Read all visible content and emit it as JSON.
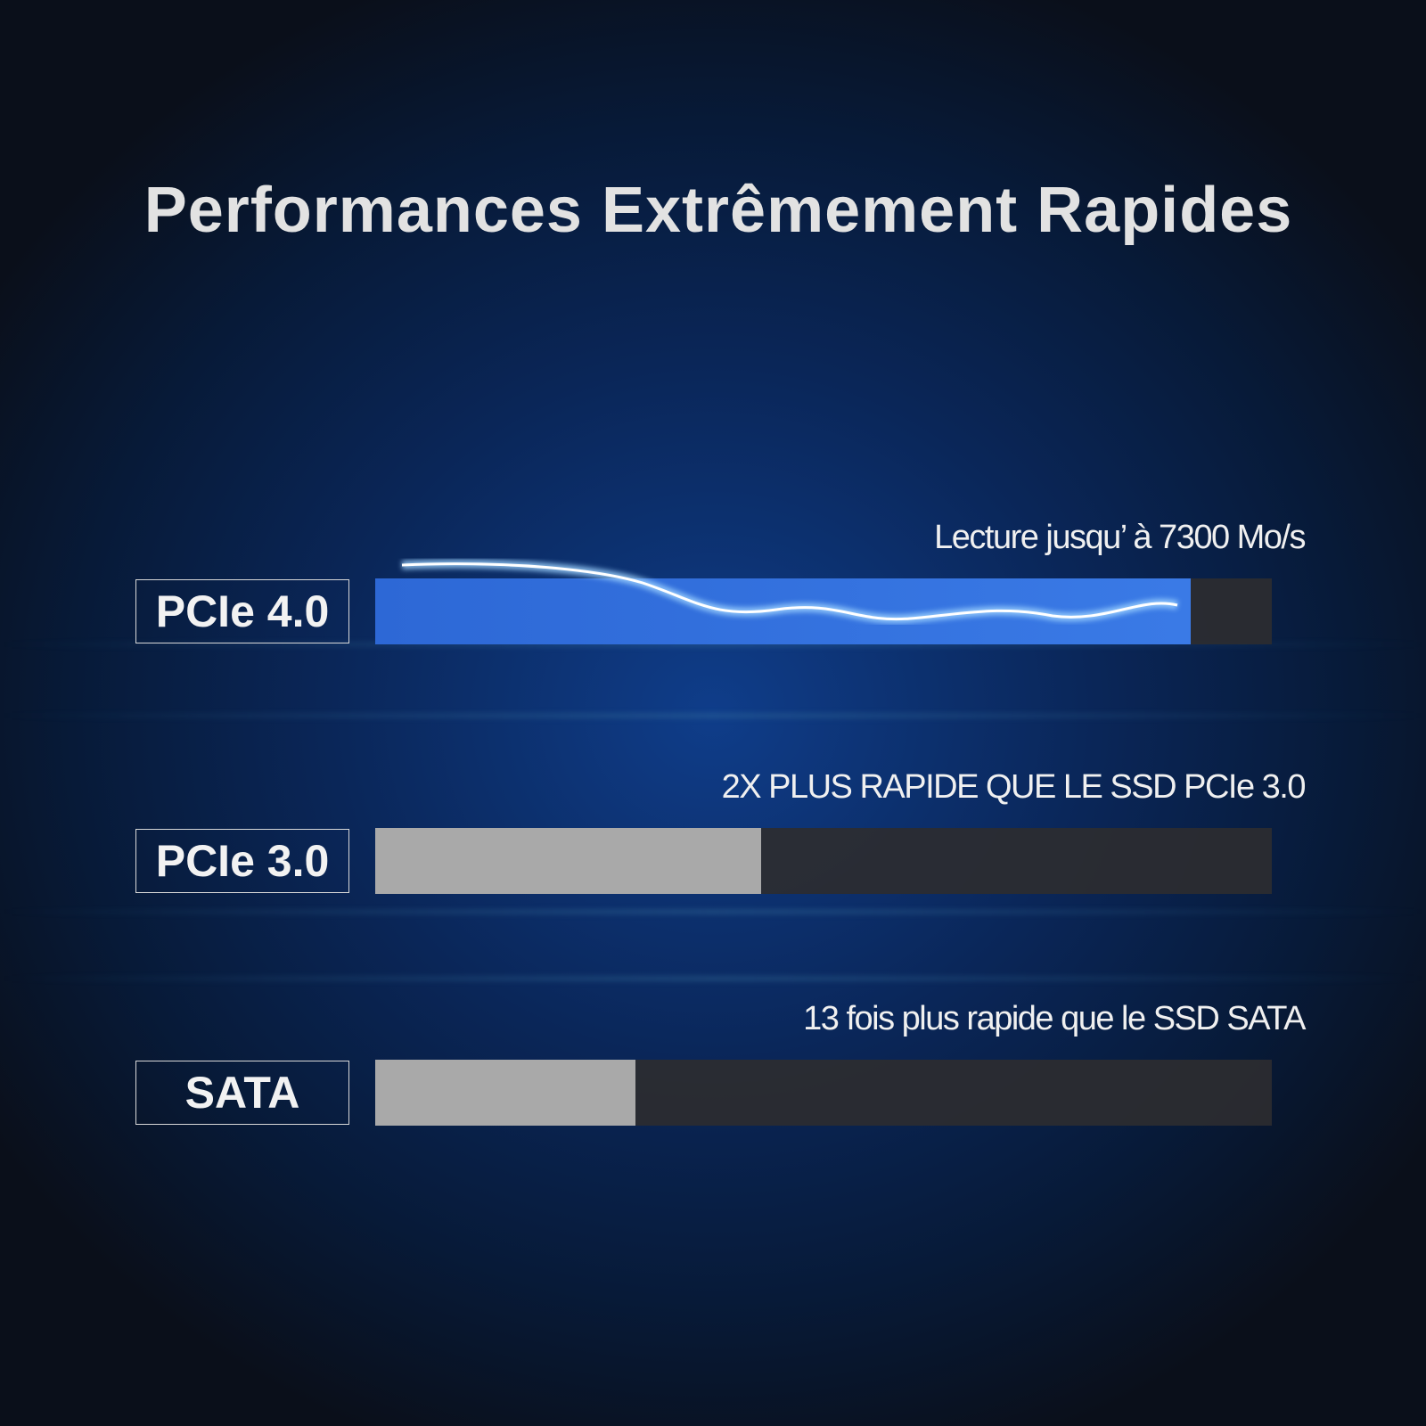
{
  "title": "Performances Extrêmement Rapides",
  "bar_range": [
    0,
    100
  ],
  "rows": [
    {
      "label": "PCIe 4.0",
      "caption": "Lecture jusqu’ à  7300 Mo/s",
      "fill": 91
    },
    {
      "label": "PCIe 3.0",
      "caption": "2X PLUS RAPIDE QUE LE SSD PCIe 3.0",
      "fill": 43
    },
    {
      "label": "SATA",
      "caption": "13 fois plus rapide que le SSD SATA",
      "fill": 29
    }
  ]
}
